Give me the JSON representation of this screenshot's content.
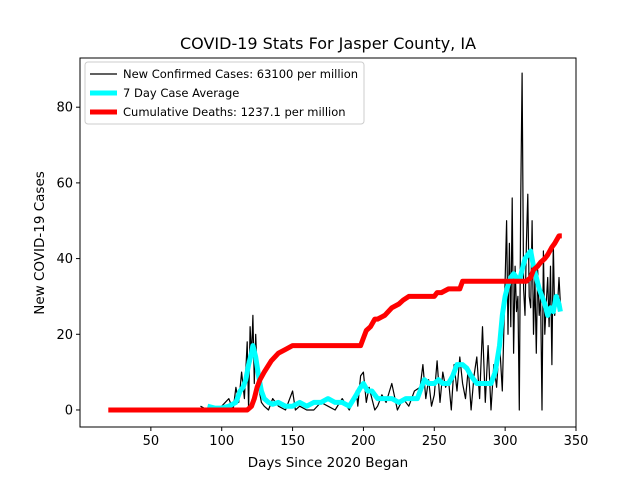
{
  "chart_data": {
    "type": "line",
    "title": "COVID-19 Stats For Jasper County, IA",
    "xlabel": "Days Since 2020 Began",
    "ylabel": "New COVID-19 Cases",
    "xlim": [
      0,
      350
    ],
    "ylim": [
      -4.5,
      93
    ],
    "xticks": [
      50,
      100,
      150,
      200,
      250,
      300,
      350
    ],
    "yticks": [
      0,
      20,
      40,
      60,
      80
    ],
    "grid": false,
    "legend_position": "upper-left",
    "series": [
      {
        "name": "New Confirmed Cases: 63100 per million",
        "color": "#000000",
        "line_width": 1.2,
        "x": [
          85,
          90,
          95,
          100,
          105,
          108,
          110,
          112,
          114,
          116,
          118,
          119,
          120,
          121,
          122,
          123,
          124,
          125,
          126,
          127,
          128,
          130,
          133,
          136,
          140,
          145,
          150,
          152,
          155,
          160,
          165,
          170,
          175,
          180,
          185,
          190,
          195,
          196,
          198,
          200,
          202,
          204,
          206,
          208,
          210,
          213,
          216,
          220,
          224,
          228,
          232,
          236,
          240,
          242,
          244,
          246,
          248,
          250,
          252,
          254,
          256,
          258,
          260,
          262,
          264,
          266,
          268,
          270,
          272,
          274,
          276,
          278,
          280,
          282,
          284,
          286,
          288,
          290,
          292,
          294,
          296,
          298,
          300,
          301,
          302,
          303,
          304,
          305,
          306,
          307,
          308,
          309,
          310,
          311,
          312,
          313,
          314,
          315,
          316,
          317,
          318,
          319,
          320,
          321,
          322,
          323,
          324,
          325,
          326,
          327,
          328,
          329,
          330,
          331,
          332,
          333,
          334,
          335,
          336,
          337,
          338,
          339
        ],
        "y": [
          1,
          0,
          0,
          1,
          3,
          0,
          6,
          2,
          10,
          3,
          18,
          0,
          22,
          14,
          25,
          7,
          20,
          10,
          8,
          4,
          2,
          1,
          0,
          3,
          1,
          0,
          5,
          0,
          1,
          0,
          0,
          2,
          1,
          0,
          3,
          0,
          5,
          1,
          9,
          10,
          2,
          6,
          3,
          0,
          1,
          4,
          2,
          7,
          0,
          3,
          1,
          5,
          6,
          12,
          3,
          8,
          1,
          4,
          13,
          2,
          10,
          6,
          8,
          0,
          12,
          5,
          14,
          7,
          3,
          11,
          0,
          9,
          14,
          3,
          22,
          2,
          17,
          0,
          12,
          6,
          18,
          5,
          34,
          50,
          20,
          44,
          22,
          56,
          15,
          38,
          26,
          30,
          0,
          55,
          89,
          32,
          25,
          44,
          57,
          30,
          27,
          50,
          20,
          35,
          15,
          37,
          25,
          30,
          0,
          42,
          20,
          28,
          35,
          22,
          38,
          12,
          44,
          25,
          30,
          28,
          35,
          28
        ]
      },
      {
        "name": "7 Day Case Average",
        "color": "#00ffff",
        "line_width": 5,
        "x": [
          90,
          95,
          100,
          105,
          110,
          113,
          115,
          117,
          119,
          121,
          122,
          124,
          126,
          128,
          130,
          133,
          136,
          140,
          145,
          150,
          155,
          160,
          165,
          170,
          175,
          180,
          185,
          190,
          195,
          198,
          200,
          203,
          206,
          210,
          215,
          220,
          225,
          230,
          235,
          238,
          240,
          243,
          246,
          250,
          253,
          256,
          260,
          263,
          266,
          270,
          273,
          276,
          280,
          283,
          286,
          290,
          293,
          296,
          298,
          300,
          302,
          304,
          306,
          308,
          310,
          312,
          314,
          316,
          318,
          320,
          322,
          324,
          326,
          328,
          330,
          332,
          334,
          336,
          338,
          339
        ],
        "y": [
          1,
          0.5,
          0.5,
          1,
          2,
          5,
          6,
          8,
          12,
          15,
          17,
          14,
          9,
          5,
          3,
          2,
          1.5,
          2,
          1,
          1,
          2,
          1,
          2,
          2,
          3,
          2,
          2,
          1,
          4,
          6,
          7,
          5,
          5,
          3,
          3,
          3,
          2,
          3,
          3,
          3,
          5,
          8,
          7,
          7,
          8,
          7,
          7,
          9,
          12,
          12,
          11,
          9,
          7,
          7,
          7,
          7,
          10,
          17,
          25,
          30,
          33,
          35,
          36,
          35,
          34,
          37,
          40,
          41,
          42,
          38,
          35,
          32,
          30,
          28,
          25,
          27,
          26,
          30,
          28,
          26
        ]
      },
      {
        "name": "Cumulative Deaths: 1237.1 per million",
        "color": "#ff0000",
        "line_width": 5,
        "x": [
          20,
          118,
          121,
          123,
          125,
          127,
          130,
          135,
          140,
          145,
          150,
          155,
          160,
          170,
          180,
          190,
          198,
          200,
          202,
          205,
          208,
          210,
          215,
          220,
          225,
          228,
          232,
          235,
          240,
          245,
          250,
          252,
          255,
          260,
          265,
          268,
          270,
          300,
          305,
          310,
          315,
          318,
          320,
          323,
          325,
          328,
          330,
          333,
          335,
          338,
          340
        ],
        "y": [
          0,
          0,
          1,
          3,
          6,
          8,
          10,
          13,
          15,
          16,
          17,
          17,
          17,
          17,
          17,
          17,
          17,
          19,
          21,
          22,
          24,
          24,
          25,
          27,
          28,
          29,
          30,
          30,
          30,
          30,
          30,
          31,
          31,
          32,
          32,
          32,
          34,
          34,
          34,
          34,
          34,
          35,
          37,
          38,
          39,
          40,
          41,
          43,
          44,
          46,
          46
        ]
      }
    ]
  }
}
